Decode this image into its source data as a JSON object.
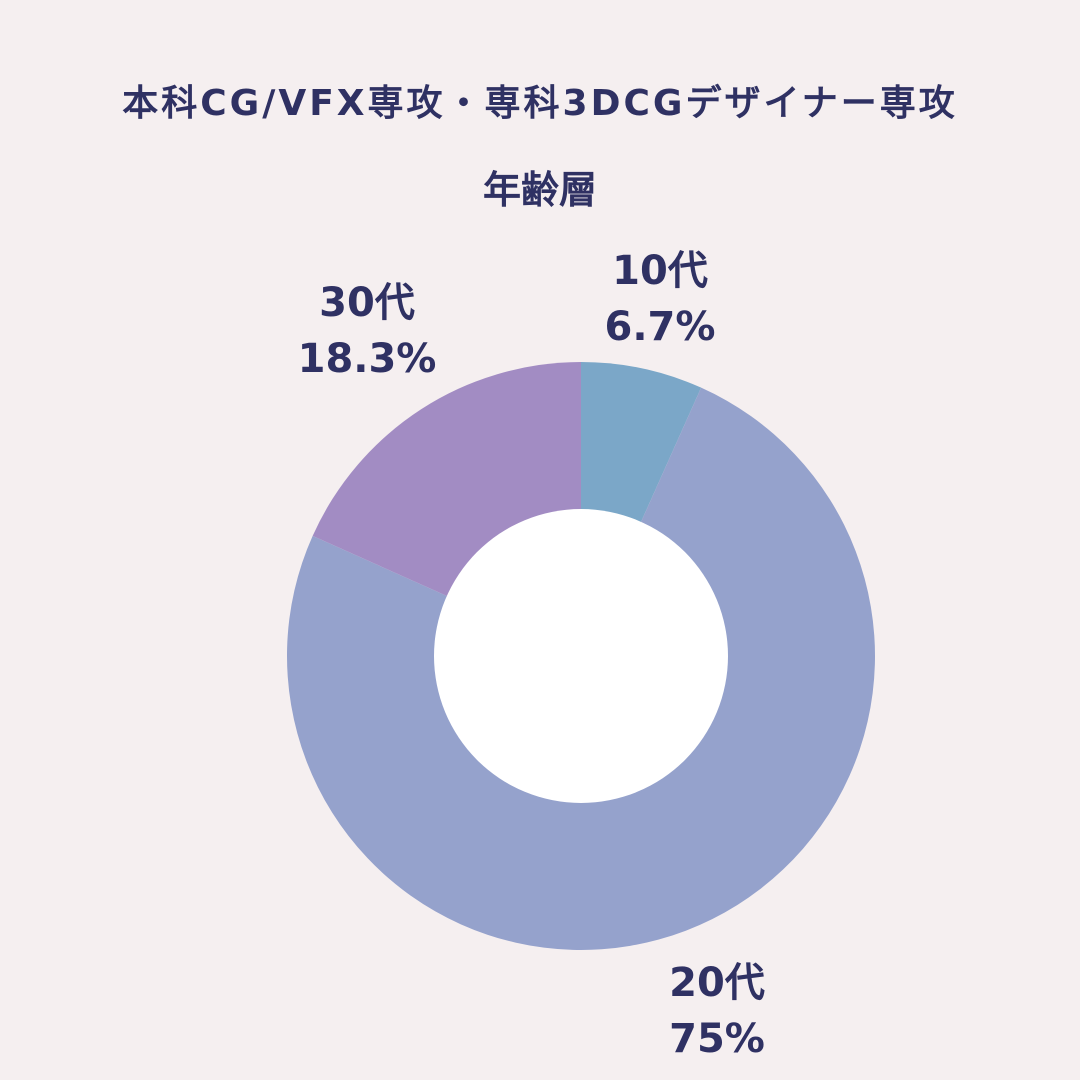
{
  "title": "本科CG/VFX専攻・専科3DCGデザイナー専攻",
  "subtitle": "年齢層",
  "colors": {
    "background": "#f5eff0",
    "text": "#2f3163",
    "hole": "#ffffff"
  },
  "chart_data": {
    "type": "pie",
    "donut": true,
    "title": "本科CG/VFX専攻・専科3DCGデザイナー専攻",
    "subtitle": "年齢層",
    "categories": [
      "10代",
      "20代",
      "30代"
    ],
    "values": [
      6.7,
      75,
      18.3
    ],
    "value_labels": [
      "6.7%",
      "75%",
      "18.3%"
    ],
    "colors": [
      "#7ba7c8",
      "#95a2cc",
      "#a28cc3"
    ],
    "start": "12 o'clock",
    "direction": "clockwise"
  }
}
